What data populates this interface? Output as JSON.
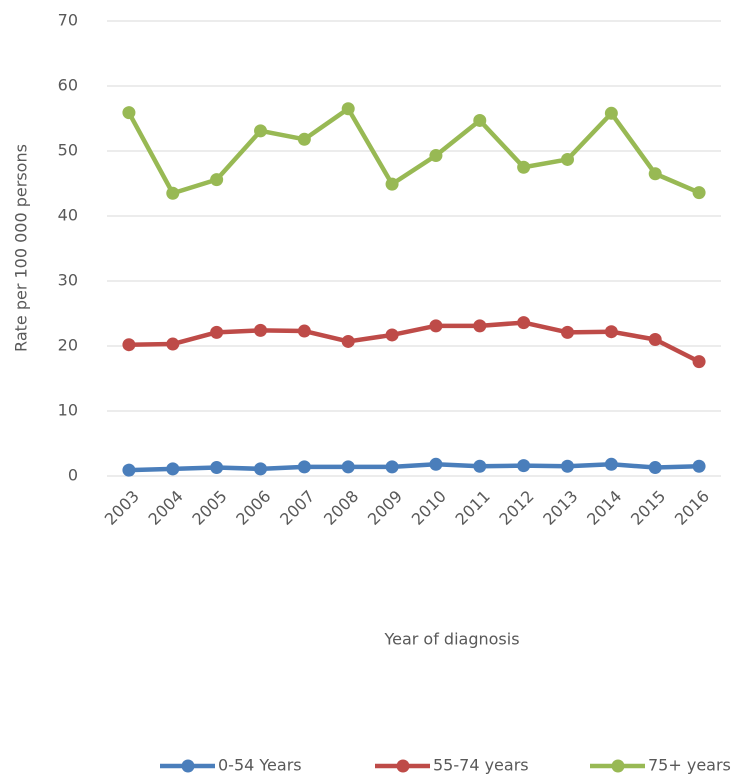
{
  "chart_data": {
    "type": "line",
    "x_label": "Year of diagnosis",
    "y_label": "Rate per 100 000 persons",
    "categories": [
      "2003",
      "2004",
      "2005",
      "2006",
      "2007",
      "2008",
      "2009",
      "2010",
      "2011",
      "2012",
      "2013",
      "2014",
      "2015",
      "2016"
    ],
    "series": [
      {
        "name": "0-54 Years",
        "color": "#4a7ebb",
        "values": [
          0.9,
          1.1,
          1.3,
          1.1,
          1.4,
          1.4,
          1.4,
          1.8,
          1.5,
          1.6,
          1.5,
          1.8,
          1.3,
          1.5
        ]
      },
      {
        "name": "55-74 years",
        "color": "#be4b48",
        "values": [
          20.2,
          20.3,
          22.1,
          22.4,
          22.3,
          20.7,
          21.7,
          23.1,
          23.1,
          23.6,
          22.1,
          22.2,
          21.0,
          17.6
        ]
      },
      {
        "name": "75+ years",
        "color": "#98b954",
        "values": [
          55.9,
          43.5,
          45.6,
          53.1,
          51.8,
          56.5,
          44.9,
          49.3,
          54.7,
          47.5,
          48.7,
          55.8,
          46.5,
          43.6
        ]
      }
    ],
    "ylim": [
      0,
      70
    ],
    "yticks": [
      0,
      10,
      20,
      30,
      40,
      50,
      60,
      70
    ],
    "grid": true,
    "legend": "bottom"
  }
}
